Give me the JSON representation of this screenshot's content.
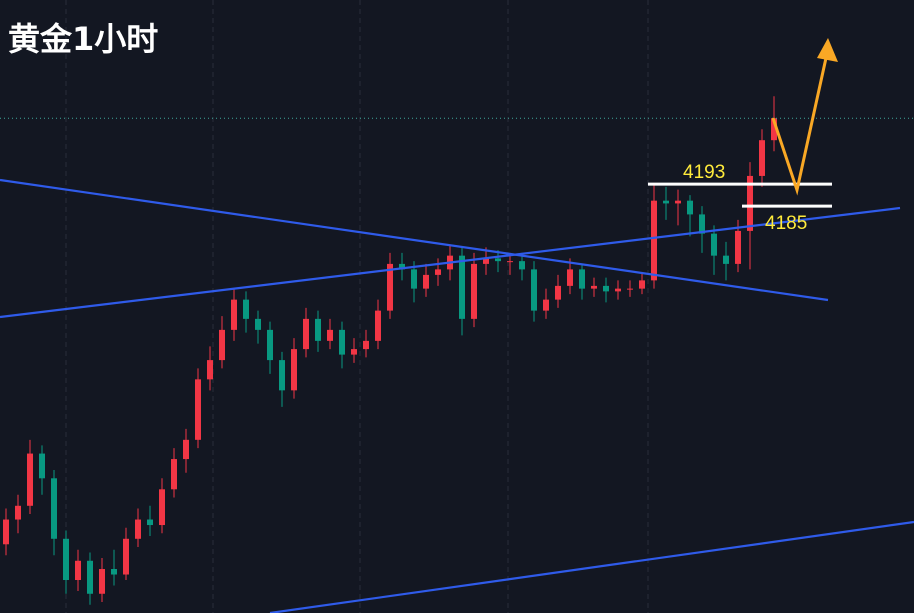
{
  "chart_data": {
    "type": "candlestick",
    "title": "黄金1小时",
    "ylim": [
      4037,
      4260
    ],
    "up_color": "#f23645",
    "down_color": "#089981",
    "levels": [
      4193,
      4185
    ],
    "level_color": "#ffeb3b",
    "candles": [
      [
        4062,
        4075,
        4058,
        4071
      ],
      [
        4071,
        4080,
        4066,
        4076
      ],
      [
        4076,
        4100,
        4073,
        4095
      ],
      [
        4095,
        4098,
        4080,
        4086
      ],
      [
        4086,
        4089,
        4058,
        4064
      ],
      [
        4064,
        4067,
        4044,
        4049
      ],
      [
        4049,
        4060,
        4045,
        4056
      ],
      [
        4056,
        4059,
        4040,
        4044
      ],
      [
        4044,
        4057,
        4041,
        4053
      ],
      [
        4053,
        4060,
        4047,
        4051
      ],
      [
        4051,
        4068,
        4049,
        4064
      ],
      [
        4064,
        4075,
        4061,
        4071
      ],
      [
        4071,
        4076,
        4065,
        4069
      ],
      [
        4069,
        4086,
        4066,
        4082
      ],
      [
        4082,
        4097,
        4079,
        4093
      ],
      [
        4093,
        4104,
        4088,
        4100
      ],
      [
        4100,
        4126,
        4097,
        4122
      ],
      [
        4122,
        4134,
        4118,
        4129
      ],
      [
        4129,
        4145,
        4126,
        4140
      ],
      [
        4140,
        4155,
        4136,
        4151
      ],
      [
        4151,
        4154,
        4139,
        4144
      ],
      [
        4144,
        4147,
        4135,
        4140
      ],
      [
        4140,
        4143,
        4124,
        4129
      ],
      [
        4129,
        4132,
        4112,
        4118
      ],
      [
        4118,
        4137,
        4115,
        4133
      ],
      [
        4133,
        4148,
        4130,
        4144
      ],
      [
        4144,
        4147,
        4132,
        4136
      ],
      [
        4136,
        4144,
        4133,
        4140
      ],
      [
        4140,
        4143,
        4126,
        4131
      ],
      [
        4131,
        4137,
        4128,
        4133
      ],
      [
        4133,
        4140,
        4130,
        4136
      ],
      [
        4136,
        4151,
        4133,
        4147
      ],
      [
        4147,
        4168,
        4144,
        4164
      ],
      [
        4164,
        4168,
        4158,
        4162
      ],
      [
        4162,
        4165,
        4150,
        4155
      ],
      [
        4155,
        4164,
        4152,
        4160
      ],
      [
        4160,
        4166,
        4156,
        4162
      ],
      [
        4162,
        4171,
        4158,
        4167
      ],
      [
        4167,
        4170,
        4138,
        4144
      ],
      [
        4144,
        4168,
        4141,
        4164
      ],
      [
        4164,
        4170,
        4160,
        4166
      ],
      [
        4166,
        4169,
        4161,
        4165
      ],
      [
        4165,
        4168,
        4160,
        4165
      ],
      [
        4165,
        4168,
        4158,
        4162
      ],
      [
        4162,
        4165,
        4143,
        4147
      ],
      [
        4147,
        4155,
        4144,
        4151
      ],
      [
        4151,
        4160,
        4148,
        4156
      ],
      [
        4156,
        4166,
        4153,
        4162
      ],
      [
        4162,
        4164,
        4151,
        4155
      ],
      [
        4155,
        4159,
        4152,
        4156
      ],
      [
        4156,
        4159,
        4150,
        4154
      ],
      [
        4154,
        4158,
        4151,
        4155
      ],
      [
        4155,
        4158,
        4152,
        4155
      ],
      [
        4155,
        4161,
        4153,
        4158
      ],
      [
        4158,
        4193,
        4155,
        4187
      ],
      [
        4187,
        4192,
        4180,
        4186
      ],
      [
        4186,
        4191,
        4178,
        4187
      ],
      [
        4187,
        4189,
        4174,
        4182
      ],
      [
        4182,
        4185,
        4168,
        4175
      ],
      [
        4175,
        4178,
        4160,
        4167
      ],
      [
        4167,
        4172,
        4158,
        4164
      ],
      [
        4164,
        4180,
        4161,
        4176
      ],
      [
        4176,
        4201,
        4162,
        4196
      ],
      [
        4196,
        4213,
        4192,
        4209
      ],
      [
        4209,
        4225,
        4205,
        4217
      ]
    ]
  }
}
